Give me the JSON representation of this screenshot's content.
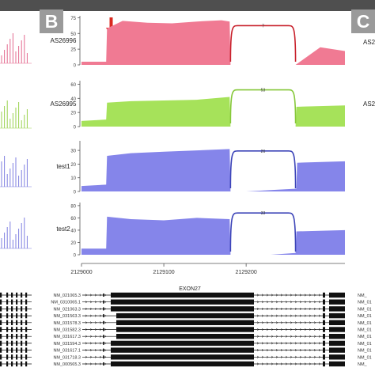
{
  "panels": {
    "b_letter": "B",
    "c_letter": "C",
    "c_track_labels": [
      "AS2",
      "AS2"
    ]
  },
  "colors": {
    "as26996": "#f07a93",
    "as26995": "#a6e25a",
    "test1": "#8585ea",
    "test2": "#8585ea",
    "as26996_junction": "#c8202b",
    "as26995_junction": "#86c83a",
    "test1_junction": "#3c44b8",
    "test2_junction": "#3c44b8",
    "arrow": "#d9281f",
    "gene_model": "#111111"
  },
  "chart_data": {
    "type": "area",
    "x_axis": {
      "range": [
        2129000,
        2129320
      ],
      "ticks": [
        2129000,
        2129100,
        2129200
      ],
      "tick_labels": [
        "2129000",
        "2129100",
        "2129200"
      ]
    },
    "tracks": [
      {
        "name": "AS26996",
        "ylim": [
          0,
          78
        ],
        "yticks": [
          0,
          25,
          50,
          75
        ],
        "color_key": "as26996",
        "x": [
          2129000,
          2129030,
          2129031,
          2129050,
          2129080,
          2129110,
          2129140,
          2129170,
          2129180,
          2129181,
          2129200,
          2129230,
          2129260,
          2129290,
          2129320
        ],
        "values": [
          5,
          5,
          58,
          70,
          67,
          66,
          69,
          71,
          69,
          0,
          0,
          0,
          0,
          28,
          22
        ],
        "junction": {
          "from": 2129181,
          "to": 2129260,
          "label": "7"
        }
      },
      {
        "name": "AS26995",
        "ylim": [
          0,
          65
        ],
        "yticks": [
          0,
          20,
          40,
          60
        ],
        "color_key": "as26995",
        "x": [
          2129000,
          2129030,
          2129031,
          2129060,
          2129100,
          2129140,
          2129180,
          2129181,
          2129200,
          2129230,
          2129260,
          2129261,
          2129320
        ],
        "values": [
          8,
          10,
          34,
          36,
          37,
          38,
          42,
          0,
          0,
          0,
          0,
          28,
          30
        ],
        "junction": {
          "from": 2129181,
          "to": 2129260,
          "label": "53"
        }
      },
      {
        "name": "test1",
        "ylim": [
          0,
          37
        ],
        "yticks": [
          0,
          10,
          20,
          30
        ],
        "color_key": "test1",
        "x": [
          2129000,
          2129030,
          2129031,
          2129060,
          2129100,
          2129140,
          2129180,
          2129181,
          2129200,
          2129230,
          2129261,
          2129262,
          2129320
        ],
        "values": [
          4,
          5,
          26,
          28,
          29,
          30,
          31,
          0,
          0,
          1,
          2,
          21,
          22
        ],
        "junction": {
          "from": 2129181,
          "to": 2129260,
          "label": "26"
        }
      },
      {
        "name": "test2",
        "ylim": [
          0,
          85
        ],
        "yticks": [
          0,
          20,
          40,
          60,
          80
        ],
        "color_key": "test2",
        "x": [
          2129000,
          2129030,
          2129031,
          2129060,
          2129100,
          2129140,
          2129180,
          2129181,
          2129200,
          2129230,
          2129260,
          2129261,
          2129320
        ],
        "values": [
          10,
          10,
          62,
          58,
          56,
          60,
          58,
          0,
          0,
          0,
          3,
          38,
          40
        ],
        "junction": {
          "from": 2129181,
          "to": 2129260,
          "label": "33"
        }
      }
    ],
    "exon_label": "EXON27",
    "transcripts": [
      "NM_021065.3",
      "NM_0310065.1",
      "NM_021063.3",
      "NM_031563.3",
      "NM_031578.3",
      "NM_031582.3",
      "NM_031617.3",
      "NM_031594.3",
      "NM_031617.1",
      "NM_031718.3",
      "NM_000565.3"
    ],
    "c_transcripts": [
      "NM_",
      "NM_01",
      "NM_01",
      "NM_01",
      "NM_01",
      "NM_01",
      "NM_01",
      "NM_01",
      "NM_01",
      "NM_01",
      "NM_"
    ]
  }
}
